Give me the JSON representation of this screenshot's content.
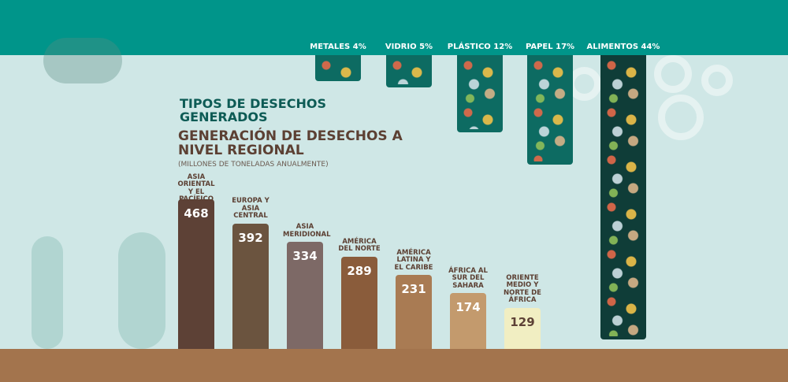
{
  "waste_types": {
    "title": "TIPOS DE DESECHOS GENERADOS",
    "items": [
      {
        "label": "METALES 4%",
        "percent": 4
      },
      {
        "label": "VIDRIO 5%",
        "percent": 5
      },
      {
        "label": "PLÁSTICO  12%",
        "percent": 12
      },
      {
        "label": "PAPEL 17%",
        "percent": 17
      },
      {
        "label": "ALIMENTOS 44%",
        "percent": 44
      }
    ]
  },
  "chart_data": {
    "type": "bar",
    "title": "GENERACIÓN DE DESECHOS A NIVEL REGIONAL",
    "subtitle": "(MILLONES DE TONELADAS ANUALMENTE)",
    "categories": [
      "ASIA ORIENTAL Y EL PACÍFICO",
      "EUROPA Y ASIA CENTRAL",
      "ASIA MERIDIONAL",
      "AMÉRICA DEL NORTE",
      "AMÉRICA LATINA Y EL CARIBE",
      "ÁFRICA AL SUR DEL SAHARA",
      "ORIENTE MEDIO Y NORTE DE ÁFRICA"
    ],
    "values": [
      468,
      392,
      334,
      289,
      231,
      174,
      129
    ],
    "colors": [
      "#5d4136",
      "#6b543f",
      "#7d6966",
      "#8a5c3b",
      "#a97b53",
      "#c39a6d",
      "#f1eec2"
    ],
    "value_label_colors": [
      "#ffffff",
      "#ffffff",
      "#ffffff",
      "#ffffff",
      "#ffffff",
      "#ffffff",
      "#5d4136"
    ]
  }
}
